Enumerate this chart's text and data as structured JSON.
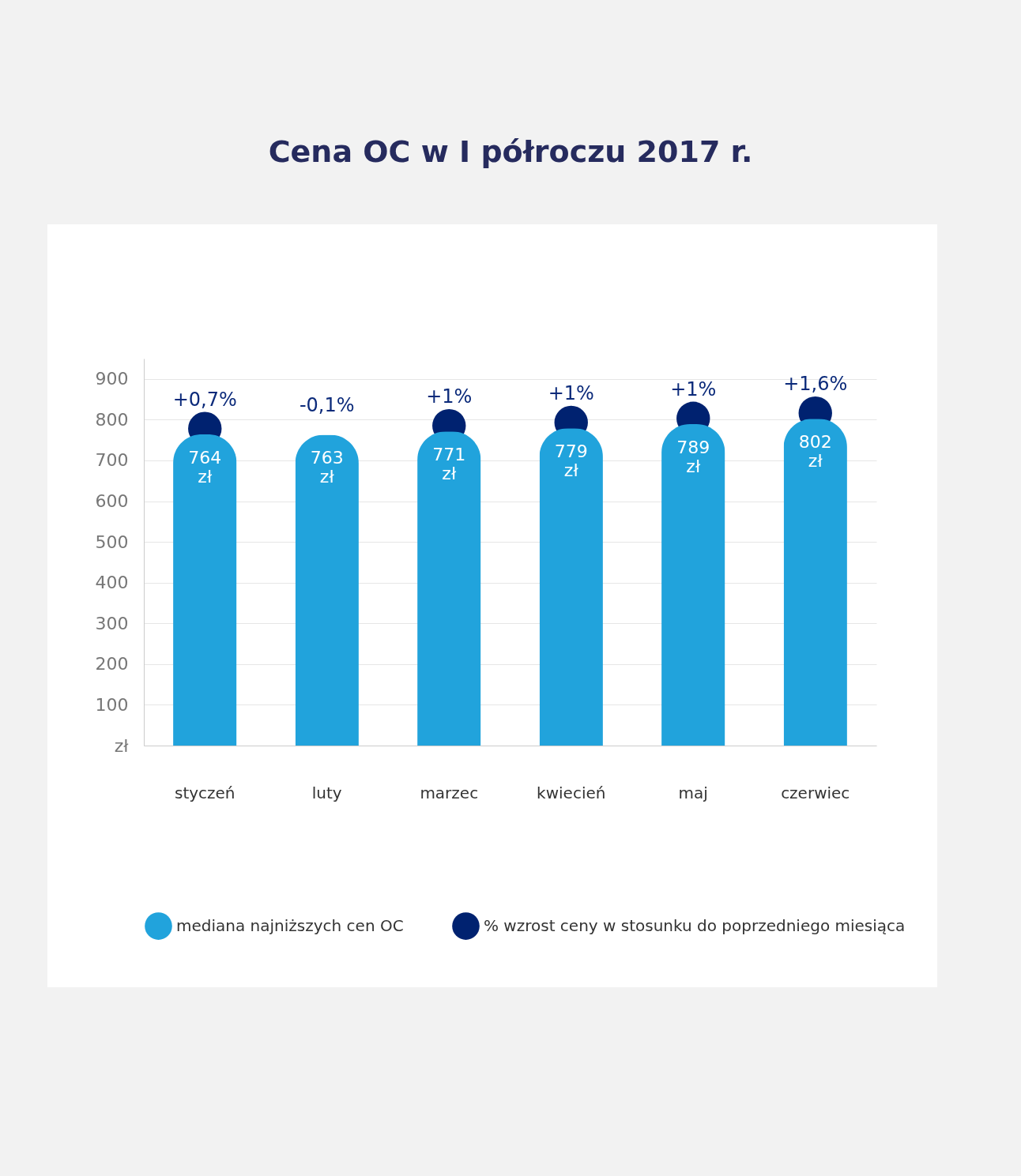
{
  "chart_data": {
    "type": "bar",
    "title": "Cena OC w I półroczu 2017 r.",
    "categories": [
      "styczeń",
      "luty",
      "marzec",
      "kwiecień",
      "maj",
      "czerwiec"
    ],
    "series": [
      {
        "name": "mediana najniższych cen OC",
        "color": "#21a3dc",
        "values": [
          764,
          763,
          771,
          779,
          789,
          802
        ],
        "value_labels": [
          "764 zł",
          "763 zł",
          "771 zł",
          "779 zł",
          "789 zł",
          "802 zł"
        ]
      },
      {
        "name": "% wzrost ceny w stosunku do poprzedniego miesiąca",
        "type": "scatter",
        "color": "#002270",
        "values": [
          778,
          null,
          785,
          793,
          803,
          816
        ]
      }
    ],
    "annotations": [
      {
        "text": "+0,7%",
        "x": "styczeń",
        "y": 778
      },
      {
        "text": "-0,1%",
        "x": "luty",
        "y": 763
      },
      {
        "text": "+1%",
        "x": "marzec",
        "y": 785
      },
      {
        "text": "+1%",
        "x": "kwiecień",
        "y": 793
      },
      {
        "text": "+1%",
        "x": "maj",
        "y": 803
      },
      {
        "text": "+1,6%",
        "x": "czerwiec",
        "y": 816
      }
    ],
    "ylim": [
      0,
      950
    ],
    "yticks": [
      {
        "value": 0,
        "label": "zł"
      },
      100,
      200,
      300,
      400,
      500,
      600,
      700,
      800,
      900
    ],
    "grid": "y",
    "legend": "bottom"
  }
}
